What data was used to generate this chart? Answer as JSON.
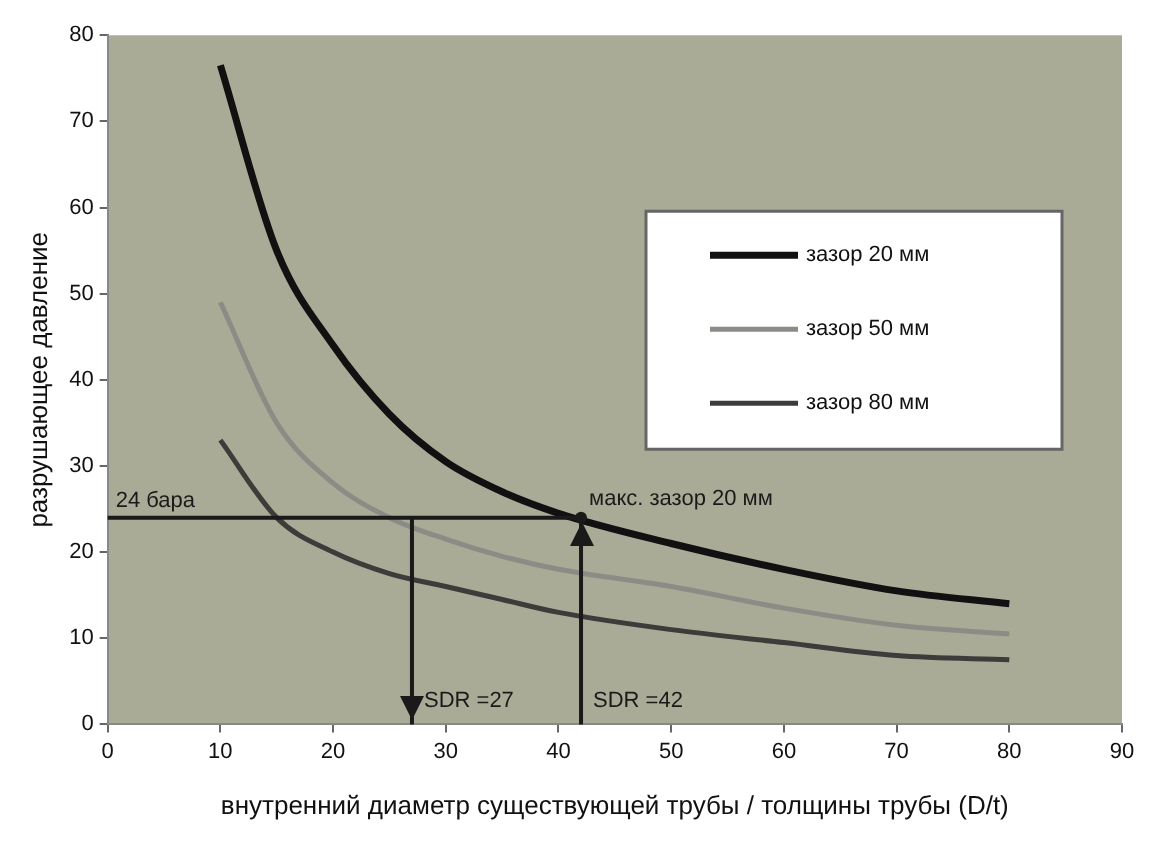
{
  "chart_data": {
    "type": "line",
    "xlabel": "внутренний диаметр существующей трубы / толщины трубы (D/t)",
    "ylabel": "разрушающее давление",
    "x": [
      10,
      15,
      20,
      25,
      30,
      35,
      40,
      50,
      60,
      70,
      80
    ],
    "series": [
      {
        "name": "зазор 20 мм",
        "color": "#111111",
        "values": [
          76.5,
          55,
          44,
          36,
          30.5,
          27,
          24.5,
          21,
          18,
          15.5,
          14
        ]
      },
      {
        "name": "зазор 50 мм",
        "color": "#8c8c86",
        "values": [
          49,
          35,
          28,
          24,
          21.5,
          19.5,
          18,
          16,
          13.5,
          11.5,
          10.5
        ]
      },
      {
        "name": "зазор 80 мм",
        "color": "#3c3c3a",
        "values": [
          33,
          24,
          20,
          17.5,
          16,
          14.5,
          13,
          11,
          9.5,
          8,
          7.5
        ]
      }
    ],
    "xlim": [
      0,
      90
    ],
    "xticks": [
      0,
      10,
      20,
      30,
      40,
      50,
      60,
      70,
      80,
      90
    ],
    "ylim": [
      0,
      80
    ],
    "yticks": [
      0,
      10,
      20,
      30,
      40,
      50,
      60,
      70,
      80
    ],
    "grid": false,
    "legend": "top right",
    "marker": "none",
    "line_style": "solid",
    "ref_lines": [
      {
        "axis": "y",
        "value": 24,
        "label": "24 бара"
      },
      {
        "axis": "x",
        "value": 27,
        "label": "SDR =27"
      },
      {
        "axis": "x",
        "value": 42,
        "label": "SDR =42"
      }
    ],
    "annotations": [
      {
        "text": "макс. зазор 20 мм",
        "x": 42,
        "y": 24
      }
    ]
  }
}
